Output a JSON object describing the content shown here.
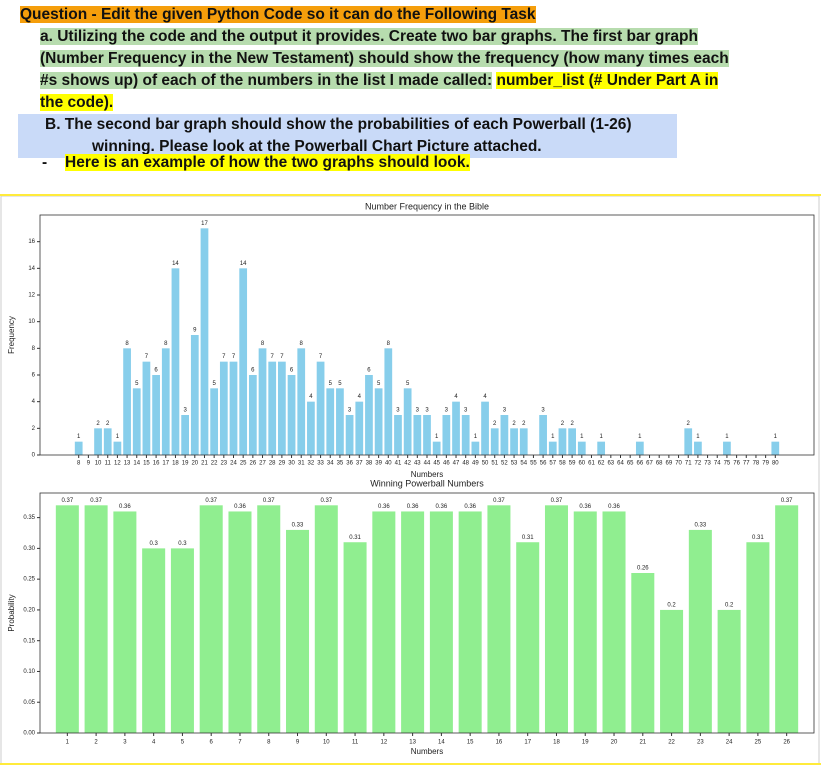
{
  "question": {
    "title": "Question - Edit the given Python Code so it can do the Following Task",
    "item_a": {
      "text": "a. Utilizing the code and the output it provides. Create two bar graphs. The first bar graph (Number Frequency in the New Testament) should show the frequency (how many times each #s shows up) of each of the numbers in the list I made called:",
      "highlight": "number_list (# Under Part A in the code)."
    },
    "item_b": "B. The second bar graph should show the probabilities of each Powerball (1-26) winning. Please look at the Powerball Chart Picture attached.",
    "bullet": {
      "marker": "-",
      "text": "Here is an example of how the two graphs should look."
    }
  },
  "chart_data": [
    {
      "type": "bar",
      "title": "Number Frequency in the Bible",
      "x_label": "Numbers",
      "y_label": "Frequency",
      "color": "#87ceeb",
      "x": [
        8,
        10,
        11,
        12,
        13,
        14,
        15,
        16,
        17,
        18,
        19,
        20,
        21,
        22,
        23,
        24,
        25,
        26,
        27,
        28,
        29,
        30,
        31,
        32,
        33,
        34,
        35,
        36,
        37,
        38,
        39,
        40,
        41,
        42,
        43,
        44,
        45,
        46,
        47,
        48,
        49,
        50,
        51,
        52,
        53,
        54,
        56,
        57,
        58,
        59,
        60,
        62,
        66,
        71,
        72,
        75,
        80
      ],
      "values": [
        1,
        2,
        2,
        1,
        8,
        5,
        7,
        6,
        8,
        14,
        3,
        9,
        17,
        5,
        7,
        7,
        14,
        6,
        8,
        7,
        7,
        6,
        8,
        4,
        7,
        5,
        5,
        3,
        4,
        6,
        5,
        8,
        3,
        5,
        3,
        3,
        1,
        3,
        4,
        3,
        1,
        4,
        2,
        3,
        2,
        2,
        3,
        1,
        2,
        2,
        1,
        1,
        1,
        2,
        1,
        1,
        1
      ],
      "xlim": [
        4,
        84
      ],
      "xticks": [
        8,
        9,
        10,
        11,
        12,
        13,
        14,
        15,
        16,
        17,
        18,
        19,
        20,
        21,
        22,
        23,
        24,
        25,
        26,
        27,
        28,
        29,
        30,
        31,
        32,
        33,
        34,
        35,
        36,
        37,
        38,
        39,
        40,
        41,
        42,
        43,
        44,
        45,
        46,
        47,
        48,
        49,
        50,
        51,
        52,
        53,
        54,
        55,
        56,
        57,
        58,
        59,
        60,
        61,
        62,
        63,
        64,
        65,
        66,
        67,
        68,
        69,
        70,
        71,
        72,
        73,
        74,
        75,
        76,
        77,
        78,
        79,
        80
      ],
      "ylim": [
        0,
        18
      ],
      "yticks": [
        0,
        2,
        4,
        6,
        8,
        10,
        12,
        14,
        16
      ]
    },
    {
      "type": "bar",
      "title": "Winning Powerball Numbers",
      "x_label": "Numbers",
      "y_label": "Probability",
      "color": "#90ee90",
      "categories": [
        "1",
        "2",
        "3",
        "4",
        "5",
        "6",
        "7",
        "8",
        "9",
        "10",
        "11",
        "12",
        "13",
        "14",
        "15",
        "16",
        "17",
        "18",
        "19",
        "20",
        "21",
        "22",
        "23",
        "24",
        "25",
        "26"
      ],
      "values": [
        0.37,
        0.37,
        0.36,
        0.3,
        0.3,
        0.37,
        0.36,
        0.37,
        0.33,
        0.37,
        0.31,
        0.36,
        0.36,
        0.36,
        0.36,
        0.37,
        0.31,
        0.37,
        0.36,
        0.36,
        0.26,
        0.2,
        0.33,
        0.2,
        0.31,
        0.37
      ],
      "ylim": [
        0,
        0.39
      ],
      "yticks": [
        {
          "value": 0,
          "label": "0.00"
        },
        {
          "value": 0.05,
          "label": "0.05"
        },
        {
          "value": 0.1,
          "label": "0.10"
        },
        {
          "value": 0.15,
          "label": "0.15"
        },
        {
          "value": 0.2,
          "label": "0.20"
        },
        {
          "value": 0.25,
          "label": "0.25"
        },
        {
          "value": 0.3,
          "label": "0.30"
        },
        {
          "value": 0.35,
          "label": "0.35"
        }
      ]
    }
  ]
}
